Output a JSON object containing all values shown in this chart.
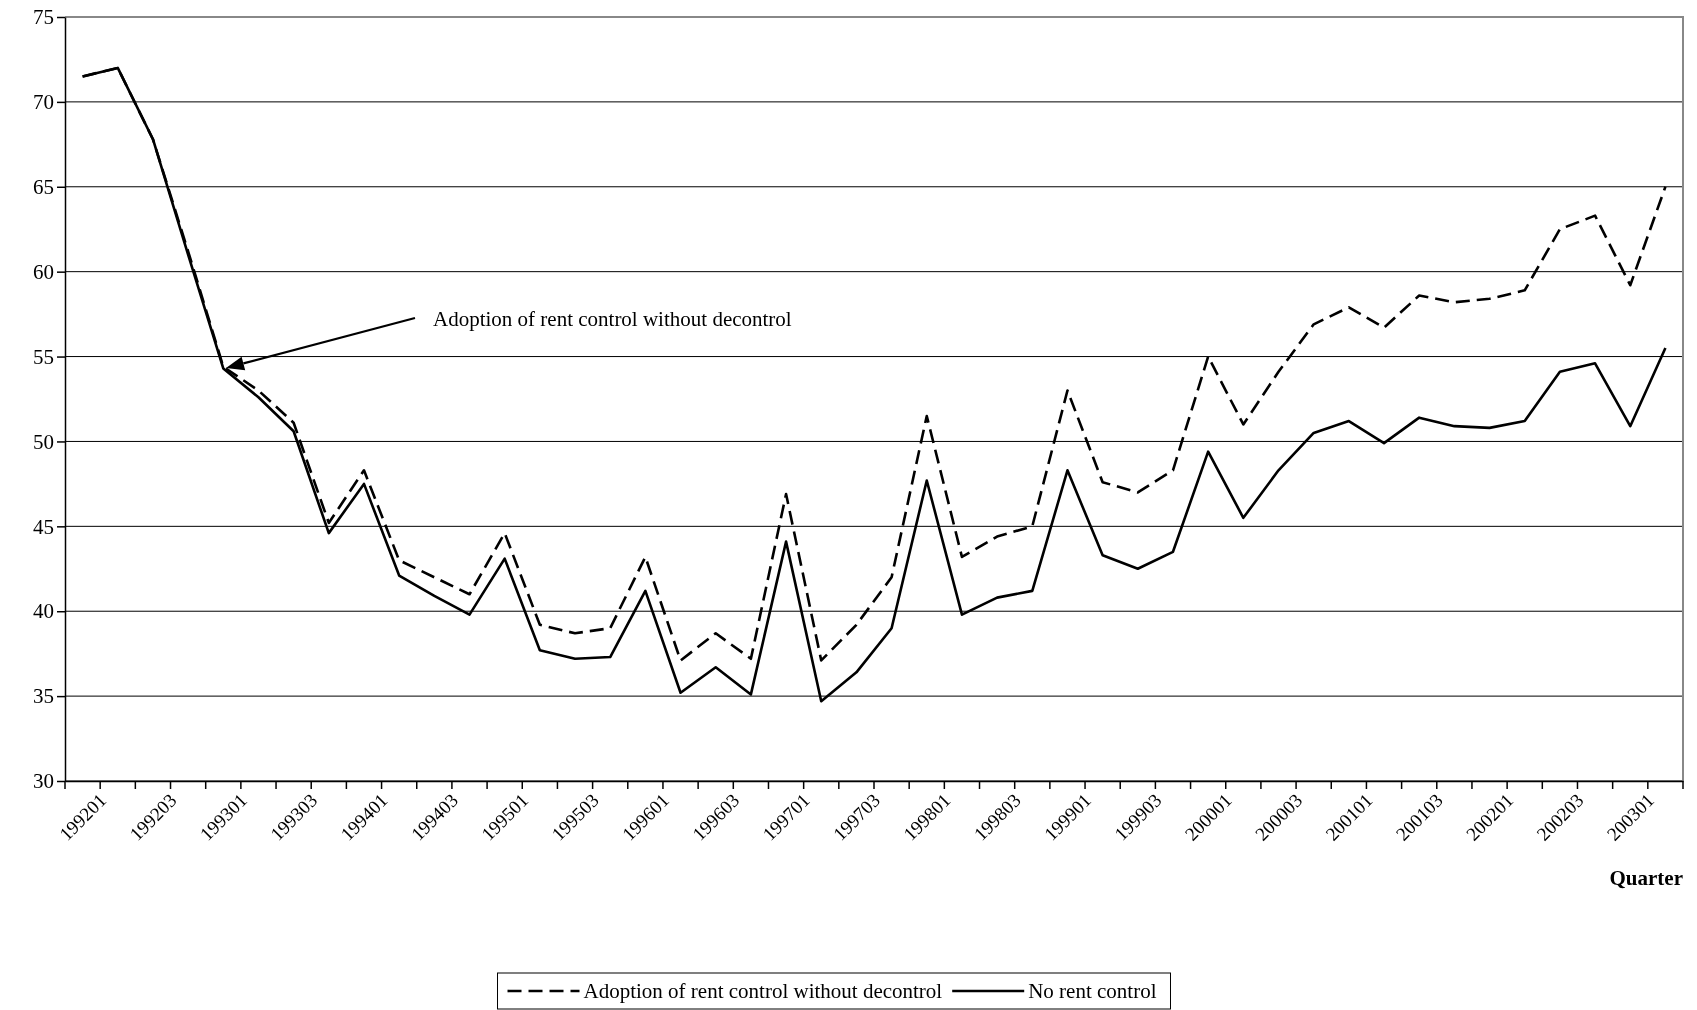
{
  "chart_data": {
    "type": "line",
    "xlabel": "Quarter",
    "categories": [
      "199201",
      null,
      "199203",
      null,
      "199301",
      null,
      "199303",
      null,
      "199401",
      null,
      "199403",
      null,
      "199501",
      null,
      "199503",
      null,
      "199601",
      null,
      "199603",
      null,
      "199701",
      null,
      "199703",
      null,
      "199801",
      null,
      "199803",
      null,
      "199901",
      null,
      "199903",
      null,
      "200001",
      null,
      "200003",
      null,
      "200101",
      null,
      "200103",
      null,
      "200201",
      null,
      "200203",
      null,
      "200301",
      null
    ],
    "series": [
      {
        "name": "Adoption of rent control without decontrol",
        "color": "#000000",
        "line_style": "dashed",
        "values": [
          71.5,
          72.0,
          67.8,
          61.2,
          54.4,
          53.0,
          51.1,
          45.2,
          48.3,
          43.0,
          42.0,
          41.0,
          44.6,
          39.2,
          38.7,
          39.0,
          43.2,
          37.1,
          38.7,
          37.2,
          46.9,
          37.1,
          39.2,
          42.0,
          51.5,
          43.2,
          44.4,
          45.0,
          53.0,
          47.6,
          47.0,
          48.3,
          55.0,
          51.0,
          54.1,
          56.9,
          57.9,
          56.7,
          58.6,
          58.2,
          58.4,
          58.9,
          62.5,
          63.3,
          59.2,
          65.0
        ]
      },
      {
        "name": "No rent control",
        "color": "#000000",
        "line_style": "solid",
        "values": [
          71.5,
          72.0,
          67.8,
          61.0,
          54.3,
          52.6,
          50.6,
          44.6,
          47.5,
          42.1,
          40.9,
          39.8,
          43.1,
          37.7,
          37.2,
          37.3,
          41.2,
          35.2,
          36.7,
          35.1,
          44.1,
          34.7,
          36.4,
          39.0,
          47.7,
          39.8,
          40.8,
          41.2,
          48.3,
          43.3,
          42.5,
          43.5,
          49.4,
          45.5,
          48.3,
          50.5,
          51.2,
          49.9,
          51.4,
          50.9,
          50.8,
          51.2,
          54.1,
          54.6,
          50.9,
          55.5
        ]
      }
    ],
    "ylim": [
      30,
      75
    ],
    "yticks": [
      30,
      35,
      40,
      45,
      50,
      55,
      60,
      65,
      70,
      75
    ],
    "grid": "y",
    "legend": "bottom",
    "marker": "none",
    "annotations": [
      "Adoption of rent control without decontrol"
    ]
  }
}
